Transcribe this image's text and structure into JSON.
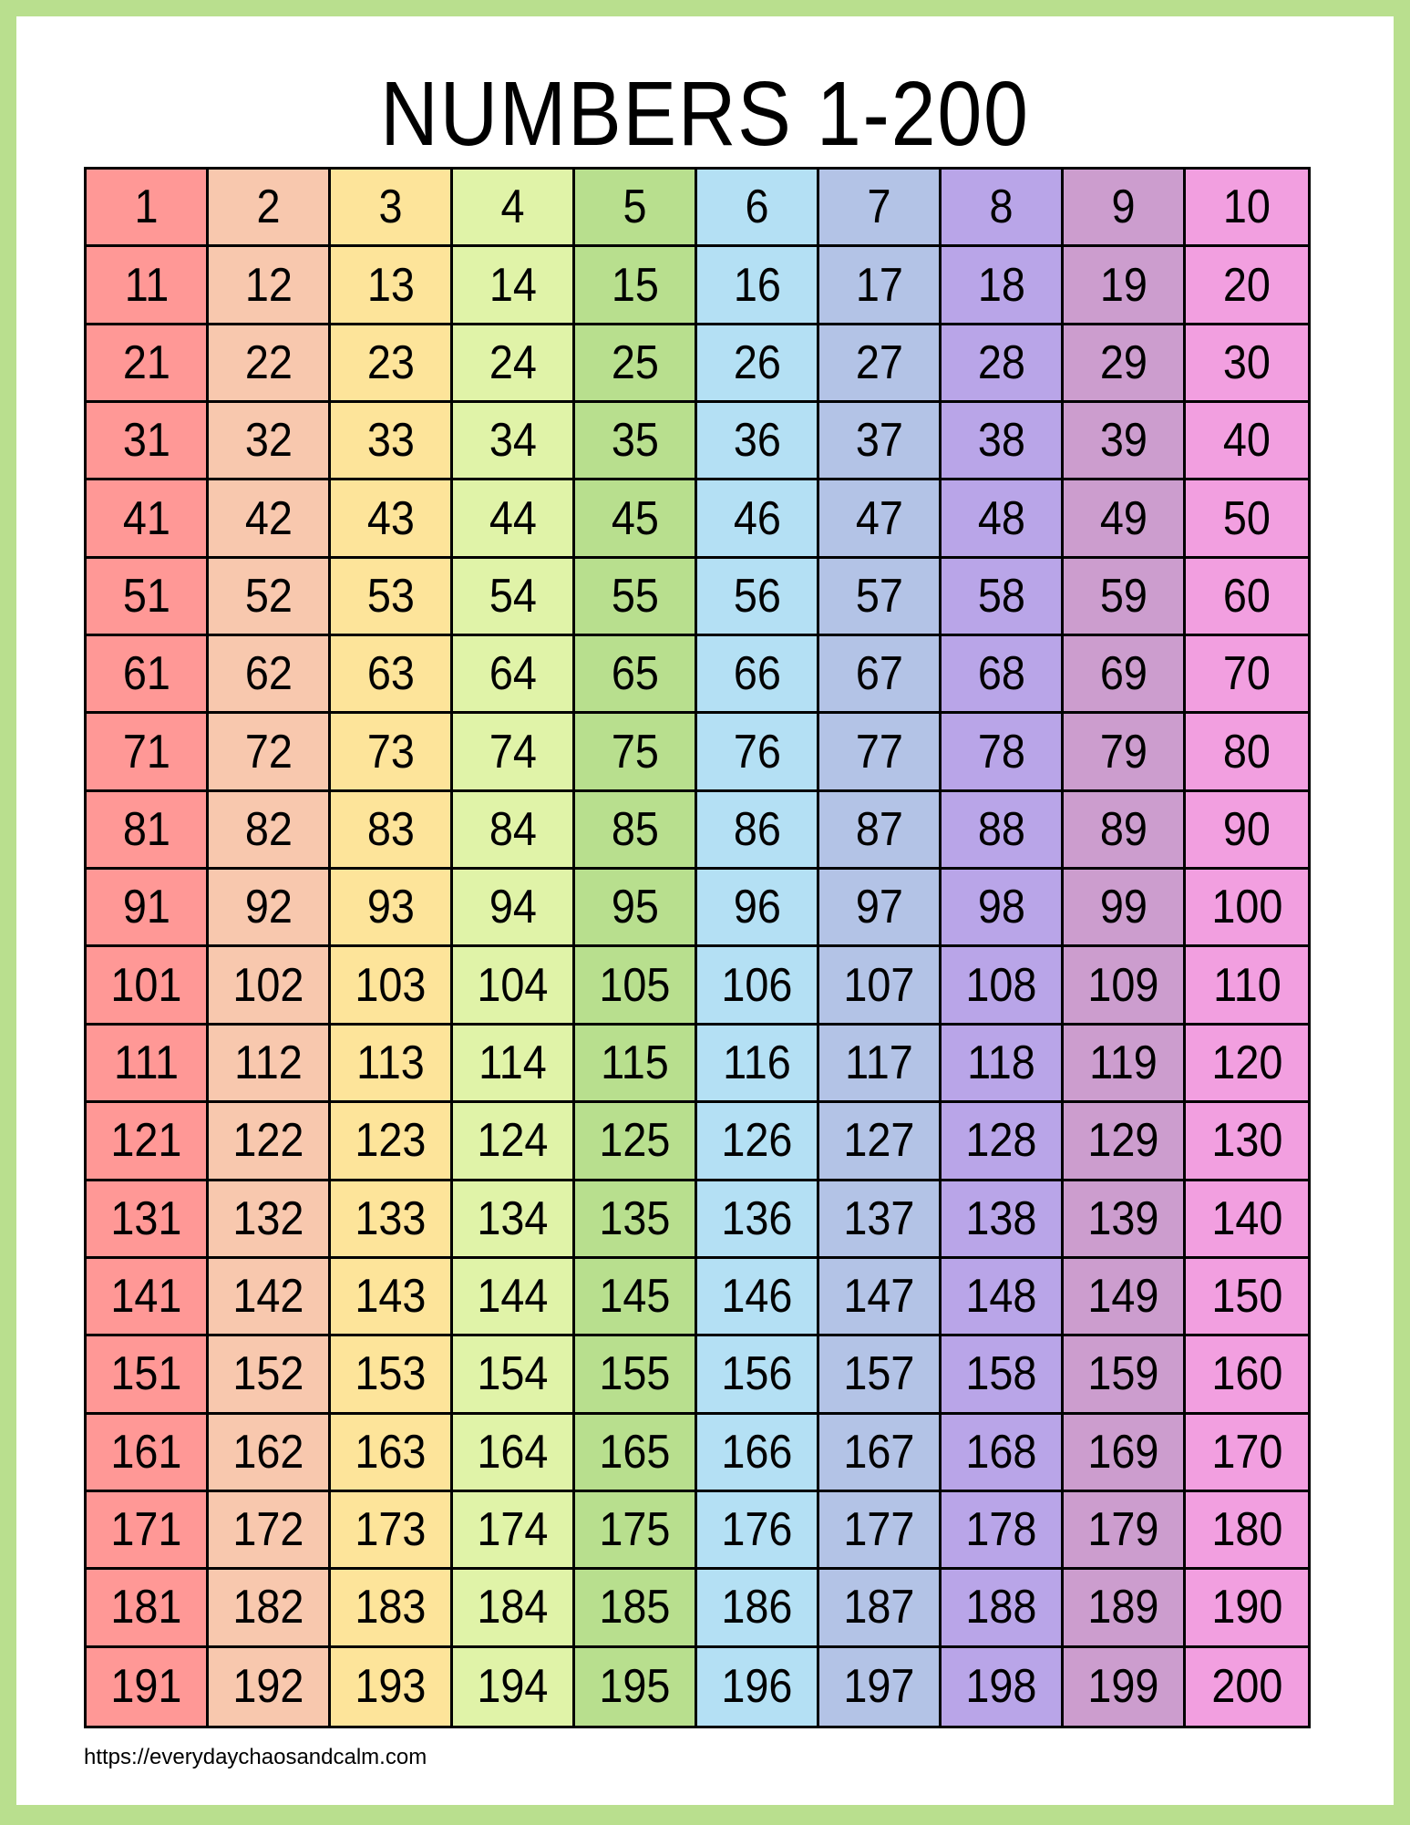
{
  "title": "NUMBERS 1-200",
  "footer": "https://everydaychaosandcalm.com",
  "colors": {
    "border": "#b9df8e",
    "columns": [
      "#ff9896",
      "#f8c8ae",
      "#fde49a",
      "#e0f3a8",
      "#b8df8e",
      "#b4e0f4",
      "#b3c3e6",
      "#b9a5e8",
      "#cc9dce",
      "#f29fe0"
    ]
  },
  "range": {
    "start": 1,
    "end": 200,
    "columns": 10
  }
}
